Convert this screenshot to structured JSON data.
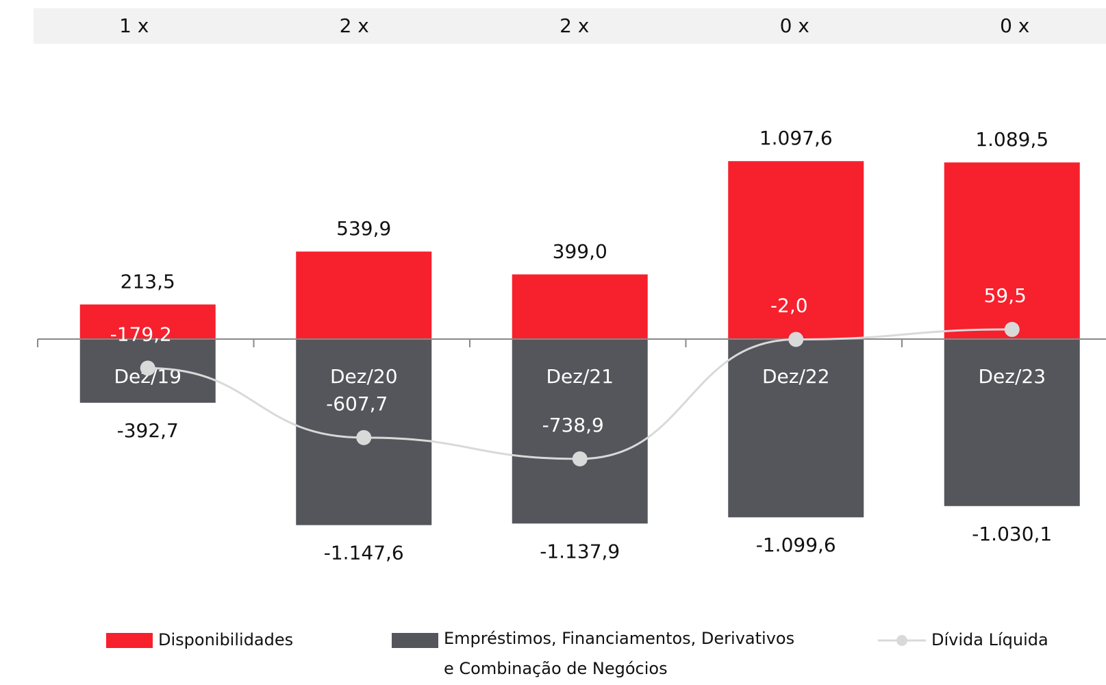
{
  "chart_data": {
    "type": "bar",
    "multiples": [
      "1 x",
      "2 x",
      "2 x",
      "0 x",
      "0 x"
    ],
    "categories": [
      "Dez/19",
      "Dez/20",
      "Dez/21",
      "Dez/22",
      "Dez/23"
    ],
    "ylim": [
      -1500,
      1500
    ],
    "series": [
      {
        "name": "Disponibilidades",
        "type": "bar",
        "color": "#f7202d",
        "values": [
          213.5,
          539.9,
          399.0,
          1097.6,
          1089.5
        ],
        "value_labels": [
          "213,5",
          "539,9",
          "399,0",
          "1.097,6",
          "1.089,5"
        ]
      },
      {
        "name": "Empréstimos, Financiamentos, Derivativos e Combinação de Negócios",
        "type": "bar",
        "color": "#55565b",
        "values": [
          -392.7,
          -1147.6,
          -1137.9,
          -1099.6,
          -1030.1
        ],
        "value_labels": [
          "-392,7",
          "-1.147,6",
          "-1.137,9",
          "-1.099,6",
          "-1.030,1"
        ]
      },
      {
        "name": "Dívida Líquida",
        "type": "line",
        "color": "#d9d9d9",
        "values": [
          -179.2,
          -607.7,
          -738.9,
          -2.0,
          59.5
        ],
        "value_labels": [
          "-179,2",
          "-607,7",
          "-738,9",
          "-2,0",
          "59,5"
        ]
      }
    ]
  }
}
